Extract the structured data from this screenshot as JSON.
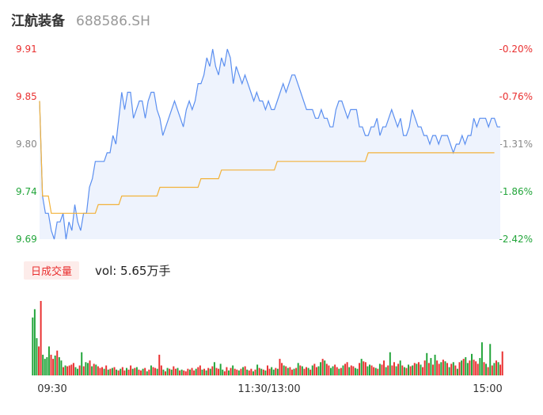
{
  "header": {
    "name": "江航装备",
    "code": "688586.SH"
  },
  "volume_panel": {
    "tag": "日成交量",
    "label": "vol: 5.65万手"
  },
  "colors": {
    "price_line": "#5b8ff0",
    "avg_line": "#f2b23a",
    "up": "#e93030",
    "down": "#22a53a",
    "area": "#eef3fd",
    "price_up_label": "#e93030",
    "price_down_label": "#22a53a"
  },
  "chart_data": [
    {
      "type": "line",
      "y_ticks_left": [
        "9.91",
        "9.85",
        "9.80",
        "9.74",
        "9.69"
      ],
      "y_ticks_right": [
        "-0.20%",
        "-0.76%",
        "-1.31%",
        "-1.86%",
        "-2.42%"
      ],
      "x_ticks": [
        "09:30",
        "11:30/13:00",
        "15:00"
      ],
      "ylim": [
        9.69,
        9.91
      ],
      "series": [
        {
          "values": [
            9.85,
            9.74,
            9.72,
            9.72,
            9.7,
            9.69,
            9.71,
            9.71,
            9.72,
            9.69,
            9.71,
            9.7,
            9.73,
            9.71,
            9.7,
            9.72,
            9.72,
            9.75,
            9.76,
            9.78,
            9.78,
            9.78,
            9.78,
            9.79,
            9.79,
            9.81,
            9.8,
            9.83,
            9.86,
            9.84,
            9.86,
            9.86,
            9.83,
            9.84,
            9.85,
            9.85,
            9.83,
            9.85,
            9.86,
            9.86,
            9.84,
            9.83,
            9.81,
            9.82,
            9.83,
            9.84,
            9.85,
            9.84,
            9.83,
            9.82,
            9.84,
            9.85,
            9.84,
            9.85,
            9.87,
            9.87,
            9.88,
            9.9,
            9.89,
            9.91,
            9.89,
            9.88,
            9.9,
            9.89,
            9.91,
            9.9,
            9.87,
            9.89,
            9.88,
            9.87,
            9.88,
            9.87,
            9.86,
            9.85,
            9.86,
            9.85,
            9.85,
            9.84,
            9.85,
            9.84,
            9.84,
            9.85,
            9.86,
            9.87,
            9.86,
            9.87,
            9.88,
            9.88,
            9.87,
            9.86,
            9.85,
            9.84,
            9.84,
            9.84,
            9.83,
            9.83,
            9.84,
            9.83,
            9.83,
            9.82,
            9.82,
            9.84,
            9.85,
            9.85,
            9.84,
            9.83,
            9.84,
            9.84,
            9.84,
            9.82,
            9.82,
            9.81,
            9.81,
            9.82,
            9.82,
            9.83,
            9.81,
            9.82,
            9.82,
            9.83,
            9.84,
            9.83,
            9.82,
            9.83,
            9.81,
            9.81,
            9.82,
            9.84,
            9.83,
            9.82,
            9.82,
            9.81,
            9.81,
            9.8,
            9.81,
            9.81,
            9.8,
            9.81,
            9.81,
            9.81,
            9.8,
            9.79,
            9.8,
            9.8,
            9.81,
            9.8,
            9.81,
            9.81,
            9.83,
            9.82,
            9.83,
            9.83,
            9.83,
            9.82,
            9.83,
            9.83,
            9.82,
            9.82
          ],
          "color": "#5b8ff0"
        },
        {
          "values": [
            9.85,
            9.74,
            9.74,
            9.74,
            9.72,
            9.72,
            9.72,
            9.72,
            9.72,
            9.72,
            9.72,
            9.72,
            9.72,
            9.72,
            9.72,
            9.72,
            9.72,
            9.72,
            9.72,
            9.72,
            9.73,
            9.73,
            9.73,
            9.73,
            9.73,
            9.73,
            9.73,
            9.73,
            9.74,
            9.74,
            9.74,
            9.74,
            9.74,
            9.74,
            9.74,
            9.74,
            9.74,
            9.74,
            9.74,
            9.74,
            9.74,
            9.75,
            9.75,
            9.75,
            9.75,
            9.75,
            9.75,
            9.75,
            9.75,
            9.75,
            9.75,
            9.75,
            9.75,
            9.75,
            9.75,
            9.76,
            9.76,
            9.76,
            9.76,
            9.76,
            9.76,
            9.76,
            9.77,
            9.77,
            9.77,
            9.77,
            9.77,
            9.77,
            9.77,
            9.77,
            9.77,
            9.77,
            9.77,
            9.77,
            9.77,
            9.77,
            9.77,
            9.77,
            9.77,
            9.77,
            9.77,
            9.78,
            9.78,
            9.78,
            9.78,
            9.78,
            9.78,
            9.78,
            9.78,
            9.78,
            9.78,
            9.78,
            9.78,
            9.78,
            9.78,
            9.78,
            9.78,
            9.78,
            9.78,
            9.78,
            9.78,
            9.78,
            9.78,
            9.78,
            9.78,
            9.78,
            9.78,
            9.78,
            9.78,
            9.78,
            9.78,
            9.78,
            9.79,
            9.79,
            9.79,
            9.79,
            9.79,
            9.79,
            9.79,
            9.79,
            9.79,
            9.79,
            9.79,
            9.79,
            9.79,
            9.79,
            9.79,
            9.79,
            9.79,
            9.79,
            9.79,
            9.79,
            9.79,
            9.79,
            9.79,
            9.79,
            9.79,
            9.79,
            9.79,
            9.79,
            9.79,
            9.79,
            9.79,
            9.79,
            9.79,
            9.79,
            9.79,
            9.79,
            9.79,
            9.79,
            9.79,
            9.79,
            9.79,
            9.79,
            9.79,
            9.79
          ],
          "color": "#f2b23a"
        }
      ]
    },
    {
      "type": "bar",
      "values": [
        70,
        80,
        45,
        35,
        90,
        25,
        20,
        22,
        35,
        25,
        20,
        24,
        30,
        22,
        18,
        10,
        12,
        11,
        12,
        13,
        15,
        10,
        8,
        12,
        28,
        11,
        16,
        15,
        18,
        11,
        14,
        13,
        11,
        9,
        10,
        8,
        12,
        7,
        8,
        9,
        10,
        7,
        6,
        8,
        10,
        6,
        9,
        7,
        12,
        8,
        9,
        10,
        7,
        6,
        8,
        9,
        5,
        7,
        12,
        10,
        9,
        8,
        25,
        12,
        7,
        5,
        9,
        8,
        7,
        11,
        8,
        9,
        6,
        7,
        6,
        5,
        8,
        7,
        9,
        6,
        8,
        10,
        12,
        7,
        8,
        6,
        9,
        8,
        11,
        16,
        9,
        8,
        14,
        7,
        5,
        10,
        6,
        9,
        12,
        8,
        7,
        6,
        8,
        10,
        11,
        7,
        6,
        8,
        5,
        7,
        13,
        9,
        8,
        7,
        6,
        12,
        8,
        10,
        7,
        9,
        8,
        20,
        15,
        12,
        11,
        9,
        10,
        7,
        8,
        9,
        15,
        12,
        11,
        8,
        10,
        9,
        7,
        12,
        14,
        10,
        11,
        16,
        20,
        18,
        14,
        12,
        9,
        11,
        13,
        10,
        8,
        9,
        12,
        14,
        16,
        10,
        12,
        11,
        9,
        8,
        15,
        20,
        17,
        16,
        11,
        13,
        12,
        10,
        9,
        8,
        14,
        13,
        18,
        10,
        12,
        28,
        12,
        16,
        11,
        14,
        18,
        12,
        10,
        9,
        13,
        11,
        12,
        15,
        14,
        16,
        13,
        10,
        18,
        27,
        15,
        21,
        13,
        25,
        18,
        14,
        16,
        19,
        17,
        15,
        10,
        14,
        16,
        12,
        8,
        16,
        18,
        20,
        22,
        15,
        18,
        26,
        19,
        17,
        14,
        21,
        40,
        16,
        14,
        10,
        38,
        12,
        15,
        18,
        16,
        13,
        29
      ],
      "directions": "gddurddddurgugdrgrurudgrdrdgrdugrurdrgrdudrgurduudrgrrdudrgrudrudrgrdrudrgrurduudrrgudrgrdurdgrudrgurdrgudrugrdudrgrudgrdrudrgurdrgudrugrdrudgrdurdgrudrgurdrudgrdurgdrudrgrudrgurdrdugrdrgudrgurdrgudrugrdrdugrdrgudgrdurudgrdrdugrdurgdrudrgrudrgurdg"
    }
  ]
}
